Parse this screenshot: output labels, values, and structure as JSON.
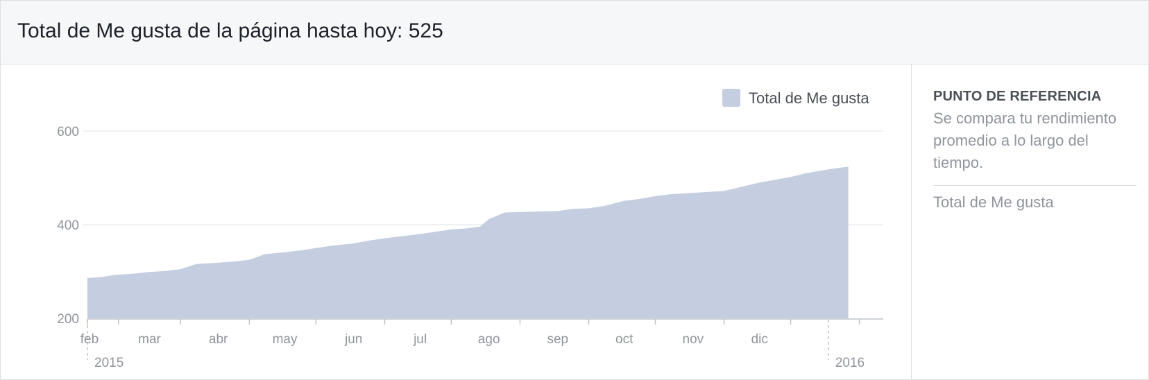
{
  "header": {
    "title": "Total de Me gusta de la página hasta hoy: 525"
  },
  "sidebar": {
    "heading": "PUNTO DE REFERENCIA",
    "description": "Se compara tu rendimiento promedio a lo largo del tiempo.",
    "item": "Total de Me gusta"
  },
  "colors": {
    "area_fill": "#c5cde1",
    "grid": "#e9ebee",
    "tick_text": "#90949c",
    "axis": "#bec2c9"
  },
  "chart_data": {
    "type": "area",
    "title": "",
    "xlabel": "",
    "ylabel": "",
    "ylim": [
      200,
      600
    ],
    "y_ticks": [
      200,
      400,
      600
    ],
    "x_month_labels": [
      "feb",
      "mar",
      "abr",
      "may",
      "jun",
      "jul",
      "ago",
      "sep",
      "oct",
      "nov",
      "dic"
    ],
    "year_labels": [
      "2015",
      "2016"
    ],
    "legend": {
      "label": "Total de Me gusta",
      "position": "top-right"
    },
    "grid": true,
    "series": [
      {
        "name": "Total de Me gusta",
        "x": [
          "2015-02-01",
          "2015-02-07",
          "2015-02-14",
          "2015-02-21",
          "2015-03-01",
          "2015-03-08",
          "2015-03-15",
          "2015-03-22",
          "2015-04-01",
          "2015-04-08",
          "2015-04-15",
          "2015-04-22",
          "2015-05-01",
          "2015-05-08",
          "2015-05-15",
          "2015-05-22",
          "2015-06-01",
          "2015-06-08",
          "2015-06-15",
          "2015-06-22",
          "2015-07-01",
          "2015-07-08",
          "2015-07-15",
          "2015-07-22",
          "2015-07-28",
          "2015-08-01",
          "2015-08-08",
          "2015-08-15",
          "2015-08-22",
          "2015-09-01",
          "2015-09-08",
          "2015-09-15",
          "2015-09-22",
          "2015-10-01",
          "2015-10-08",
          "2015-10-15",
          "2015-10-22",
          "2015-11-01",
          "2015-11-08",
          "2015-11-15",
          "2015-11-22",
          "2015-12-01",
          "2015-12-08",
          "2015-12-15",
          "2015-12-22",
          "2016-01-01",
          "2016-01-10"
        ],
        "values": [
          286,
          288,
          293,
          295,
          299,
          301,
          305,
          316,
          319,
          321,
          325,
          337,
          341,
          345,
          350,
          355,
          360,
          366,
          371,
          375,
          380,
          385,
          390,
          392,
          396,
          412,
          426,
          427,
          428,
          429,
          434,
          435,
          440,
          451,
          455,
          461,
          465,
          468,
          470,
          472,
          480,
          490,
          496,
          502,
          510,
          518,
          524
        ]
      }
    ]
  }
}
